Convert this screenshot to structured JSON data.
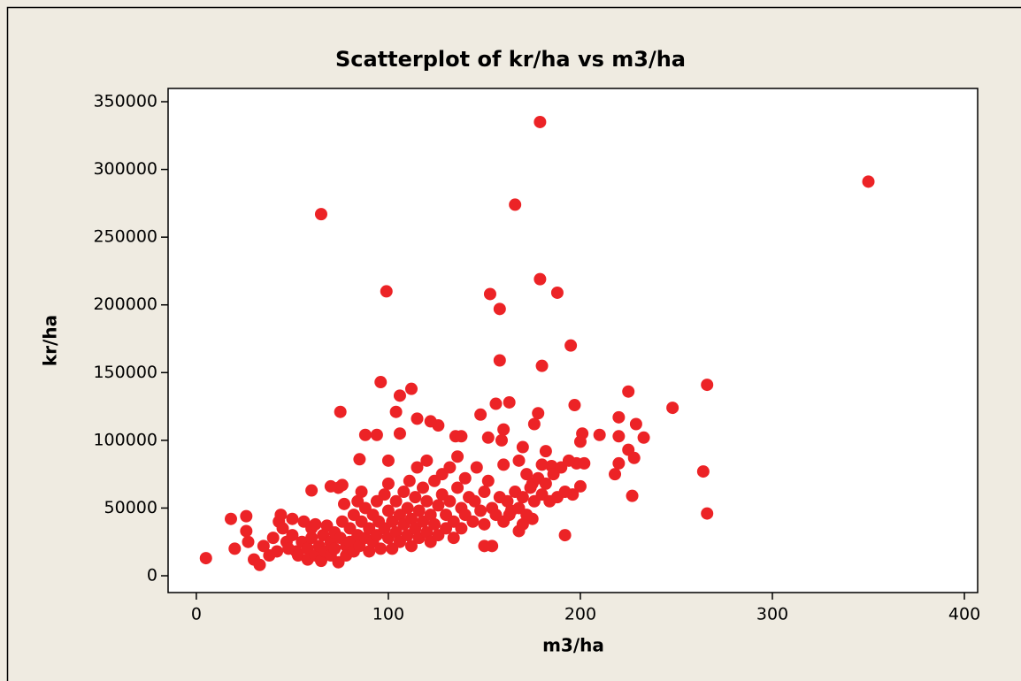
{
  "chart_data": {
    "type": "scatter",
    "title": "Scatterplot of kr/ha vs m3/ha",
    "x_label": "m3/ha",
    "y_label": "kr/ha",
    "color": "#ec2326",
    "xlim": [
      -14.7,
      406.9
    ],
    "ylim": [
      -12400,
      359800
    ],
    "xticks": [
      0,
      100,
      200,
      300,
      400
    ],
    "yticks": [
      0,
      50000,
      100000,
      150000,
      200000,
      250000,
      300000,
      350000
    ],
    "x": [
      5,
      18,
      20,
      26,
      26,
      27,
      30,
      33,
      60,
      65,
      75,
      99,
      96,
      106,
      112,
      104,
      115,
      153,
      158,
      166,
      179,
      179,
      188,
      158,
      180,
      195,
      350,
      266,
      264,
      266,
      248,
      225,
      220,
      227,
      233,
      229,
      201,
      197,
      210,
      192,
      154,
      150,
      85,
      88,
      94,
      106,
      100,
      74,
      70,
      76,
      77,
      163,
      156,
      148,
      135,
      138,
      126,
      122,
      176,
      178,
      198,
      202,
      200,
      218,
      220,
      220,
      225,
      228,
      200,
      196,
      185,
      182,
      170,
      180,
      160,
      152,
      159,
      168,
      172,
      175,
      175,
      168,
      170,
      163,
      35,
      38,
      40,
      42,
      43,
      44,
      45,
      47,
      48,
      50,
      50,
      52,
      53,
      55,
      56,
      58,
      58,
      60,
      60,
      62,
      62,
      64,
      65,
      66,
      67,
      68,
      70,
      70,
      72,
      72,
      74,
      75,
      76,
      78,
      78,
      80,
      80,
      82,
      82,
      84,
      84,
      85,
      86,
      86,
      88,
      88,
      90,
      90,
      92,
      92,
      94,
      94,
      95,
      96,
      98,
      98,
      100,
      100,
      100,
      102,
      102,
      104,
      104,
      106,
      106,
      108,
      108,
      110,
      110,
      111,
      112,
      112,
      114,
      114,
      115,
      116,
      116,
      118,
      118,
      120,
      120,
      120,
      122,
      122,
      124,
      124,
      126,
      126,
      128,
      128,
      130,
      130,
      132,
      132,
      134,
      134,
      136,
      136,
      138,
      138,
      140,
      140,
      142,
      144,
      145,
      146,
      148,
      150,
      150,
      152,
      154,
      156,
      158,
      160,
      160,
      162,
      164,
      166,
      168,
      170,
      172,
      174,
      176,
      178,
      180,
      182,
      184,
      186,
      188,
      190,
      192,
      194
    ],
    "values": [
      13000,
      42000,
      20000,
      44000,
      33000,
      25000,
      12000,
      8000,
      63000,
      267000,
      121000,
      210000,
      143000,
      133000,
      138000,
      121000,
      116000,
      208000,
      197000,
      274000,
      335000,
      219000,
      209000,
      159000,
      155000,
      170000,
      291000,
      141000,
      77000,
      46000,
      124000,
      136000,
      117000,
      59000,
      102000,
      112000,
      105000,
      126000,
      104000,
      30000,
      22000,
      22000,
      86000,
      104000,
      104000,
      105000,
      85000,
      65000,
      66000,
      67000,
      53000,
      128000,
      127000,
      119000,
      103000,
      103000,
      111000,
      114000,
      112000,
      120000,
      83000,
      83000,
      99000,
      75000,
      103000,
      83000,
      93000,
      87000,
      66000,
      60000,
      81000,
      92000,
      95000,
      82000,
      108000,
      102000,
      100000,
      85000,
      75000,
      68000,
      42000,
      33000,
      38000,
      45000,
      22000,
      15000,
      28000,
      18000,
      40000,
      45000,
      35000,
      25000,
      20000,
      42000,
      30000,
      18000,
      15000,
      25000,
      40000,
      20000,
      12000,
      35000,
      28000,
      15000,
      38000,
      22000,
      11000,
      30000,
      18000,
      37000,
      25000,
      15000,
      32000,
      20000,
      10000,
      28000,
      40000,
      22000,
      15000,
      35000,
      25000,
      45000,
      18000,
      30000,
      55000,
      22000,
      40000,
      62000,
      28000,
      50000,
      35000,
      18000,
      45000,
      25000,
      55000,
      30000,
      40000,
      20000,
      60000,
      35000,
      48000,
      28000,
      68000,
      40000,
      20000,
      55000,
      32000,
      45000,
      25000,
      62000,
      38000,
      50000,
      30000,
      70000,
      42000,
      22000,
      58000,
      35000,
      80000,
      48000,
      28000,
      65000,
      40000,
      55000,
      32000,
      85000,
      45000,
      25000,
      70000,
      38000,
      52000,
      30000,
      60000,
      75000,
      45000,
      35000,
      80000,
      55000,
      40000,
      28000,
      65000,
      88000,
      50000,
      35000,
      72000,
      45000,
      58000,
      40000,
      55000,
      80000,
      48000,
      62000,
      38000,
      70000,
      50000,
      45000,
      58000,
      82000,
      40000,
      55000,
      48000,
      62000,
      50000,
      58000,
      45000,
      65000,
      55000,
      72000,
      60000,
      68000,
      55000,
      75000,
      58000,
      80000,
      62000,
      85000
    ]
  }
}
